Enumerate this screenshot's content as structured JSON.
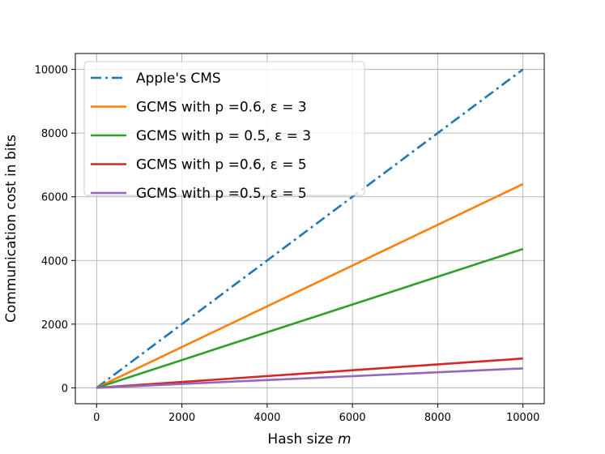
{
  "chart_data": {
    "type": "line",
    "title": "",
    "xlabel": "Hash size",
    "xlabel_var": "m",
    "ylabel": "Communication cost in bits",
    "xlim": [
      -500,
      10500
    ],
    "ylim": [
      -500,
      10500
    ],
    "xticks": [
      0,
      2000,
      4000,
      6000,
      8000,
      10000
    ],
    "yticks": [
      0,
      2000,
      4000,
      6000,
      8000,
      10000
    ],
    "xtick_labels": [
      "0",
      "2000",
      "4000",
      "6000",
      "8000",
      "10000"
    ],
    "ytick_labels": [
      "0",
      "2000",
      "4000",
      "6000",
      "8000",
      "10000"
    ],
    "grid": true,
    "legend_position": "top-left",
    "series": [
      {
        "name": "Apple's CMS",
        "color": "#1f77b4",
        "style": "dashdot",
        "x": [
          0,
          10000
        ],
        "y": [
          0,
          10000
        ]
      },
      {
        "name": "GCMS with p =0.6, ε = 3",
        "color": "#ff7f0e",
        "style": "solid",
        "x": [
          0,
          10000
        ],
        "y": [
          0,
          6400
        ]
      },
      {
        "name": "GCMS with p = 0.5, ε = 3",
        "color": "#2ca02c",
        "style": "solid",
        "x": [
          0,
          10000
        ],
        "y": [
          0,
          4360
        ]
      },
      {
        "name": "GCMS with p =0.6, ε = 5",
        "color": "#d62728",
        "style": "solid",
        "x": [
          0,
          10000
        ],
        "y": [
          0,
          920
        ]
      },
      {
        "name": "GCMS with p =0.5, ε = 5",
        "color": "#9467bd",
        "style": "solid",
        "x": [
          0,
          10000
        ],
        "y": [
          0,
          610
        ]
      }
    ]
  }
}
